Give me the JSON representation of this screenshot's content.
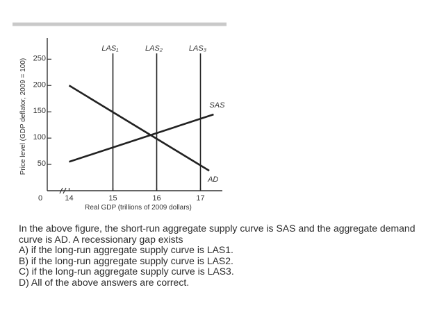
{
  "chart_data": {
    "type": "line",
    "title": "",
    "xlabel": "Real GDP (trillions of 2009 dollars)",
    "ylabel": "Price level (GDP deflator, 2009 = 100)",
    "origin_label": "0",
    "x_ticks": [
      {
        "value": 14,
        "label": "14"
      },
      {
        "value": 15,
        "label": "15"
      },
      {
        "value": 16,
        "label": "16"
      },
      {
        "value": 17,
        "label": "17"
      }
    ],
    "y_ticks": [
      {
        "value": 50,
        "label": "50"
      },
      {
        "value": 100,
        "label": "100"
      },
      {
        "value": 150,
        "label": "150"
      },
      {
        "value": 200,
        "label": "200"
      },
      {
        "value": 250,
        "label": "250"
      }
    ],
    "xlim": [
      13.5,
      17.5
    ],
    "ylim": [
      0,
      290
    ],
    "x_axis_break": true,
    "grid": false,
    "series": [
      {
        "name": "SAS",
        "x": [
          14,
          17.3
        ],
        "y": [
          55,
          145
        ]
      },
      {
        "name": "AD",
        "x": [
          14,
          17.2
        ],
        "y": [
          200,
          38
        ]
      },
      {
        "name": "LAS1",
        "label": "LAS₁",
        "vertical_x": 15
      },
      {
        "name": "LAS2",
        "label": "LAS₂",
        "vertical_x": 16
      },
      {
        "name": "LAS3",
        "label": "LAS₃",
        "vertical_x": 17
      }
    ]
  },
  "question": {
    "stem": "In the above figure, the short-run aggregate supply curve is SAS and the aggregate demand curve is AD. A recessionary gap exists",
    "options": [
      "A) if the long-run aggregate supply curve is LAS1.",
      "B) if the long-run aggregate supply curve is LAS2.",
      "C) if the long-run aggregate supply curve is LAS3.",
      "D) All of the above answers are correct."
    ]
  }
}
